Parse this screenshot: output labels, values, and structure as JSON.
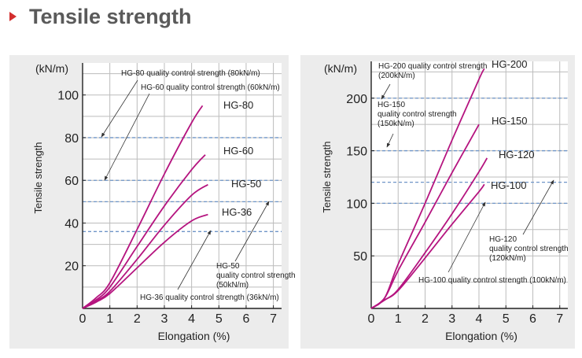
{
  "title": "Tensile strength",
  "colors": {
    "accent": "#d32f2f",
    "curve": "#b5147f",
    "qc_line": "#6f95c7",
    "grid": "#bcbcbc",
    "panel": "#ececec",
    "title": "#5a5a5a"
  },
  "chart_data": [
    {
      "type": "line",
      "panel": "left",
      "xlabel": "Elongation (%)",
      "ylabel": "Tensile strength",
      "yunit": "(kN/m)",
      "xlim": [
        0,
        7.3
      ],
      "ylim": [
        0,
        115
      ],
      "xticks": [
        0,
        1,
        2,
        3,
        4,
        5,
        6,
        7
      ],
      "yticks": [
        20,
        40,
        60,
        80,
        100
      ],
      "grid": true,
      "series": [
        {
          "name": "HG-80",
          "x": [
            0,
            0.5,
            1,
            2,
            3,
            4,
            4.4
          ],
          "y": [
            0,
            5,
            12,
            37,
            63,
            87,
            95
          ]
        },
        {
          "name": "HG-60",
          "x": [
            0,
            0.5,
            1,
            2,
            3,
            4,
            4.5
          ],
          "y": [
            0,
            4,
            10,
            29,
            48,
            65,
            72
          ]
        },
        {
          "name": "HG-50",
          "x": [
            0,
            0.5,
            1,
            2,
            3,
            4,
            4.6
          ],
          "y": [
            0,
            3.5,
            8,
            23,
            39,
            53,
            58
          ]
        },
        {
          "name": "HG-36",
          "x": [
            0,
            0.5,
            1,
            2,
            3,
            4,
            4.6
          ],
          "y": [
            0,
            3,
            7,
            19,
            31,
            41,
            44
          ]
        }
      ],
      "qc_lines": [
        {
          "y": 80,
          "text": "HG-80 quality control strength (80kN/m)"
        },
        {
          "y": 60,
          "text": "HG-60 quality control strength (60kN/m)"
        },
        {
          "y": 50,
          "lines": [
            "HG-50",
            "quality control strength",
            "(50kN/m)"
          ]
        },
        {
          "y": 36,
          "text": "HG-36 quality control strength (36kN/m)"
        }
      ]
    },
    {
      "type": "line",
      "panel": "right",
      "xlabel": "Elongation (%)",
      "ylabel": "Tensile strength",
      "yunit": "(kN/m)",
      "xlim": [
        0,
        7.3
      ],
      "ylim": [
        0,
        235
      ],
      "xticks": [
        0,
        1,
        2,
        3,
        4,
        5,
        6,
        7
      ],
      "yticks": [
        50,
        100,
        150,
        200
      ],
      "grid": true,
      "series": [
        {
          "name": "HG-200",
          "x": [
            0,
            0.5,
            1,
            2,
            3,
            4,
            4.2
          ],
          "y": [
            0,
            10,
            42,
            100,
            160,
            218,
            228
          ]
        },
        {
          "name": "HG-150",
          "x": [
            0,
            0.5,
            1,
            2,
            3,
            4
          ],
          "y": [
            0,
            10,
            36,
            82,
            129,
            175
          ]
        },
        {
          "name": "HG-120",
          "x": [
            0,
            0.5,
            1,
            2,
            3,
            4,
            4.3
          ],
          "y": [
            0,
            8,
            18,
            53,
            90,
            130,
            143
          ]
        },
        {
          "name": "HG-100",
          "x": [
            0,
            0.5,
            1,
            2,
            3,
            4,
            4.2
          ],
          "y": [
            0,
            8,
            17,
            48,
            80,
            111,
            118
          ]
        }
      ],
      "qc_lines": [
        {
          "y": 200,
          "lines": [
            "HG-200 quality control strength",
            "(200kN/m)"
          ]
        },
        {
          "y": 150,
          "lines": [
            "HG-150",
            "quality control strength",
            "(150kN/m)"
          ]
        },
        {
          "y": 120,
          "lines": [
            "HG-120",
            "quality control strength",
            "(120kN/m)"
          ]
        },
        {
          "y": 100,
          "text": "HG-100 quality control strength (100kN/m)"
        }
      ]
    }
  ]
}
